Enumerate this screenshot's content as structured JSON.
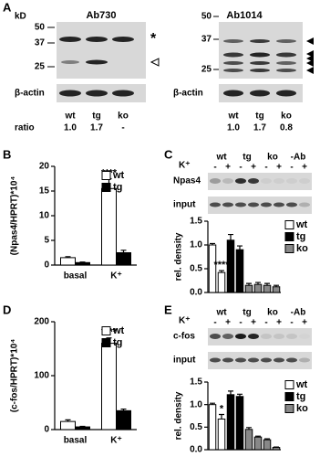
{
  "panel_labels": [
    "A",
    "B",
    "C",
    "D",
    "E"
  ],
  "blots": {
    "A": {
      "unit": "kD",
      "left": {
        "title": "Ab730",
        "markers": [
          50,
          37,
          25
        ],
        "symbol": "*",
        "loading": "β-actin",
        "lanes": [
          "wt",
          "tg",
          "ko"
        ],
        "ratio_label": "ratio",
        "ratios": [
          "1.0",
          "1.7",
          "-"
        ]
      },
      "right": {
        "title": "Ab1014",
        "markers": [
          50,
          37,
          25
        ],
        "loading": "β-actin",
        "lanes": [
          "wt",
          "tg",
          "ko"
        ],
        "ratios": [
          "1.0",
          "1.7",
          "0.8"
        ]
      }
    },
    "C": {
      "stimulus": "K⁺",
      "groups": [
        "wt",
        "tg",
        "ko",
        "-Ab"
      ],
      "conditions": [
        "-",
        "+",
        "-",
        "+",
        "-",
        "+",
        "-",
        "+"
      ],
      "rows": [
        "Npas4",
        "input"
      ]
    },
    "E": {
      "stimulus": "K⁺",
      "groups": [
        "wt",
        "tg",
        "ko",
        "-Ab"
      ],
      "conditions": [
        "-",
        "+",
        "-",
        "+",
        "-",
        "+",
        "-",
        "+"
      ],
      "rows": [
        "c-fos",
        "input"
      ]
    }
  },
  "chart_data": [
    {
      "type": "bar",
      "y_label": "(Npas4/HPRT)*10⁴",
      "categories": [
        "basal",
        "K⁺"
      ],
      "series": [
        {
          "name": "wt",
          "color": "#ffffff",
          "values": [
            1.5,
            15.5
          ],
          "errors": [
            0.2,
            2
          ]
        },
        {
          "name": "tg",
          "color": "#000000",
          "values": [
            0.5,
            2.5
          ],
          "errors": [
            0.1,
            0.5
          ]
        }
      ],
      "ylim": [
        0,
        20
      ],
      "yticks": [
        0,
        5,
        10,
        15,
        20
      ],
      "annotations": [
        {
          "text": "****",
          "category": 1,
          "series": 0
        }
      ]
    },
    {
      "type": "bar",
      "y_label": "rel. density",
      "categories": [
        null,
        null,
        null,
        null,
        null,
        null,
        null,
        null
      ],
      "series": [
        {
          "name": "wt",
          "color": "#ffffff",
          "values": [
            1.0,
            0.42,
            null,
            null,
            null,
            null,
            null,
            null
          ],
          "errors": [
            0.03,
            0.04,
            null,
            null,
            null,
            null,
            null,
            null
          ]
        },
        {
          "name": "tg",
          "color": "#000000",
          "values": [
            null,
            null,
            1.1,
            0.9,
            null,
            null,
            null,
            null
          ],
          "errors": [
            null,
            null,
            0.12,
            0.08,
            null,
            null,
            null,
            null
          ]
        },
        {
          "name": "ko",
          "color": "#888888",
          "values": [
            null,
            null,
            null,
            null,
            0.15,
            0.17,
            0.15,
            0.12
          ],
          "errors": [
            null,
            null,
            null,
            null,
            0.04,
            0.04,
            0.04,
            0.03
          ]
        }
      ],
      "ylim": [
        0,
        1.5
      ],
      "yticks": [
        {
          "value": 0,
          "label": "0.0"
        },
        0.5,
        {
          "value": 1,
          "label": "1.0"
        },
        {
          "value": 1.5,
          "label": "1.5"
        }
      ],
      "annotations": [
        {
          "text": "****",
          "category": 1,
          "series": 0
        }
      ]
    },
    {
      "type": "bar",
      "y_label": "(c-fos/HPRT)*10⁴",
      "categories": [
        "basal",
        "K⁺"
      ],
      "series": [
        {
          "name": "wt",
          "color": "#ffffff",
          "values": [
            15,
            160
          ],
          "errors": [
            3,
            10
          ]
        },
        {
          "name": "tg",
          "color": "#000000",
          "values": [
            5,
            35
          ],
          "errors": [
            1,
            3
          ]
        }
      ],
      "ylim": [
        0,
        200
      ],
      "yticks": [
        0,
        100,
        200
      ],
      "annotations": [
        {
          "text": "****",
          "category": 1,
          "series": 0
        }
      ]
    },
    {
      "type": "bar",
      "y_label": "rel. density",
      "categories": [
        null,
        null,
        null,
        null,
        null,
        null,
        null,
        null
      ],
      "series": [
        {
          "name": "wt",
          "color": "#ffffff",
          "values": [
            1.0,
            0.68,
            null,
            null,
            null,
            null,
            null,
            null
          ],
          "errors": [
            0.03,
            0.1,
            null,
            null,
            null,
            null,
            null,
            null
          ]
        },
        {
          "name": "tg",
          "color": "#000000",
          "values": [
            null,
            null,
            1.22,
            1.18,
            null,
            null,
            null,
            null
          ],
          "errors": [
            null,
            null,
            0.08,
            0.05,
            null,
            null,
            null,
            null
          ]
        },
        {
          "name": "ko",
          "color": "#888888",
          "values": [
            null,
            null,
            null,
            null,
            0.45,
            0.28,
            0.22,
            0.05
          ],
          "errors": [
            null,
            null,
            null,
            null,
            0.04,
            0.02,
            0.02,
            0.01
          ]
        }
      ],
      "ylim": [
        0,
        1.5
      ],
      "yticks": [
        {
          "value": 0,
          "label": "0.0"
        },
        0.5,
        {
          "value": 1,
          "label": "1.0"
        },
        {
          "value": 1.5,
          "label": "1.5"
        }
      ],
      "annotations": [
        {
          "text": "*",
          "category": 1,
          "series": 0
        }
      ]
    }
  ]
}
